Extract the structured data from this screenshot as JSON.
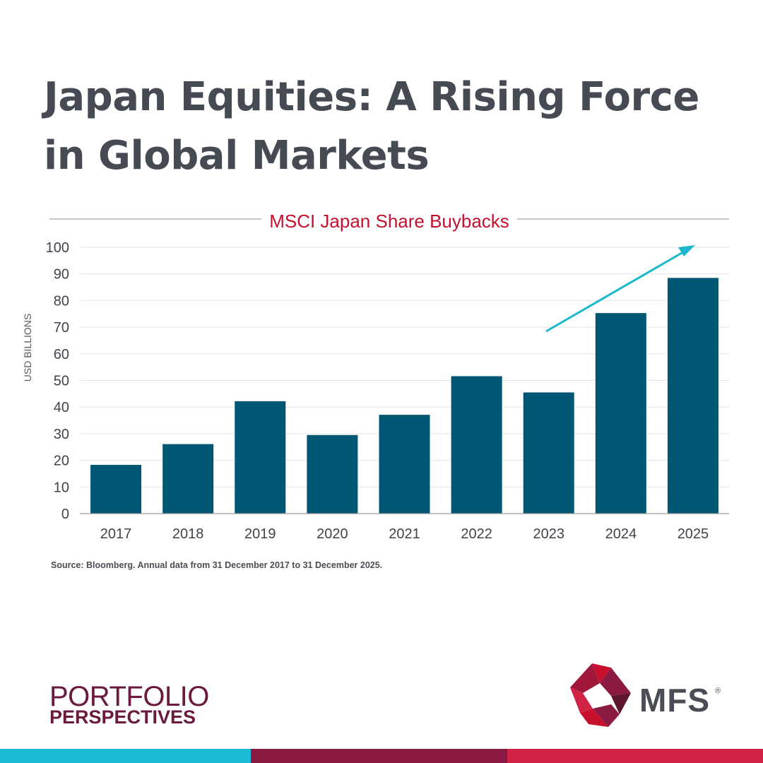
{
  "headline": "Japan Equities: A Rising Force in Global Markets",
  "source": "Source: Bloomberg. Annual data from 31 December 2017 to 31 December 2025.",
  "brand": {
    "series_line_1": "PORTFOLIO",
    "series_line_2": "PERSPECTIVES",
    "company": "MFS",
    "registered_mark": "®"
  },
  "colors": {
    "heading": "#464a53",
    "bar": "#005773",
    "chart_title": "#c8102e",
    "arrow": "#1bb8cc",
    "band": [
      "#1bbad6",
      "#8a1a42",
      "#d12346"
    ]
  },
  "chart_data": {
    "type": "bar",
    "title": "MSCI Japan Share Buybacks",
    "ylabel": "USD BILLIONS",
    "categories": [
      "2017",
      "2018",
      "2019",
      "2020",
      "2021",
      "2022",
      "2023",
      "2024",
      "2025"
    ],
    "values": [
      18.3,
      26.1,
      42.2,
      29.5,
      37.1,
      51.6,
      45.5,
      75.3,
      88.5
    ],
    "ylim": [
      0,
      100
    ],
    "yticks": [
      0,
      10,
      20,
      30,
      40,
      50,
      60,
      70,
      80,
      90,
      100
    ],
    "grid": true,
    "annotation": "upward trend arrow above 2024–2025 bars"
  }
}
